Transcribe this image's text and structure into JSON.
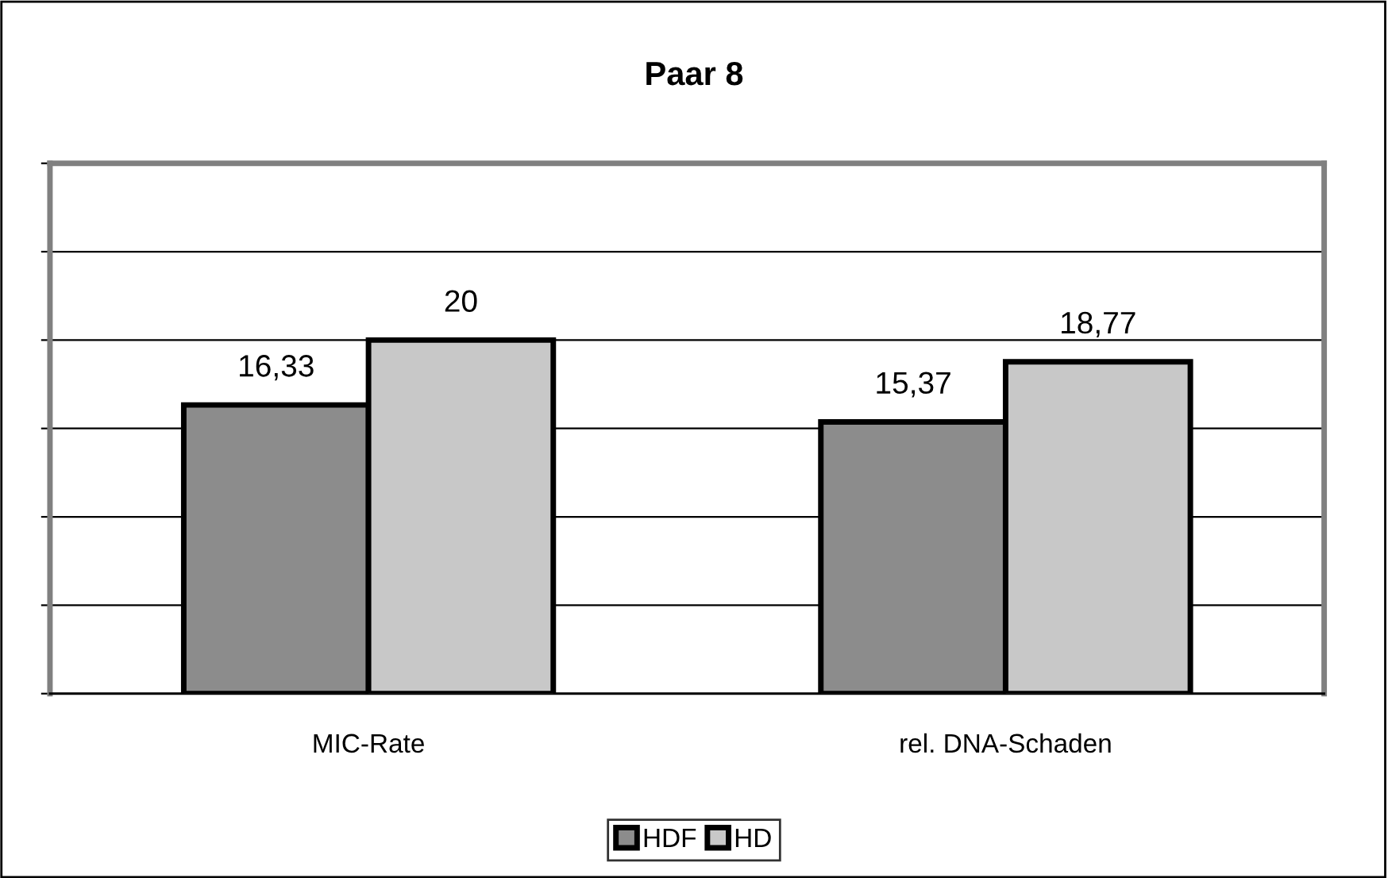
{
  "chart_data": {
    "type": "bar",
    "title": "Paar 8",
    "categories": [
      "MIC-Rate",
      "rel. DNA-Schaden"
    ],
    "series": [
      {
        "name": "HDF",
        "color": "#8c8c8c",
        "values": [
          16.33,
          15.37
        ],
        "value_labels": [
          "16,33",
          "15,37"
        ]
      },
      {
        "name": "HD",
        "color": "#c8c8c8",
        "values": [
          20,
          18.77
        ],
        "value_labels": [
          "20",
          "18,77"
        ]
      }
    ],
    "ylim": [
      0,
      30
    ],
    "yticks": [
      {
        "value": 0,
        "label": null
      },
      {
        "value": 5,
        "label": null
      },
      {
        "value": 10,
        "label": null
      },
      {
        "value": 15,
        "label": null
      },
      {
        "value": 20,
        "label": null
      },
      {
        "value": 25,
        "label": null
      },
      {
        "value": 30,
        "label": null
      }
    ],
    "grid": "y",
    "legend": "bottom",
    "tick_labels": "x"
  }
}
